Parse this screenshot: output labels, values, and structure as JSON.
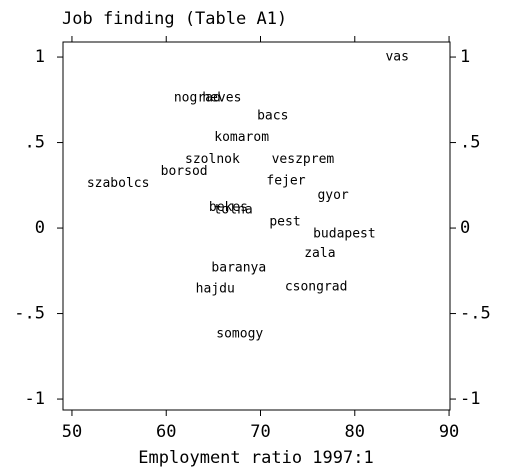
{
  "chart_data": {
    "type": "scatter",
    "title": "Job finding (Table A1)",
    "x_label": "Employment ratio 1997:1",
    "labels": [
      "vas",
      "nograd",
      "heves",
      "bacs",
      "komarom",
      "szolnok",
      "veszprem",
      "borsod",
      "szabolcs",
      "fejer",
      "gyor",
      "bekes",
      "tolna",
      "pest",
      "budapest",
      "zala",
      "baranya",
      "hajdu",
      "csongrad",
      "somogy"
    ],
    "x": [
      84.5,
      63.3,
      65.9,
      71.3,
      68.0,
      64.9,
      74.5,
      61.9,
      54.9,
      72.7,
      77.7,
      66.6,
      67.1,
      72.6,
      78.9,
      76.3,
      67.7,
      65.2,
      75.9,
      67.8
    ],
    "values": [
      1.0,
      0.76,
      0.76,
      0.655,
      0.53,
      0.4,
      0.4,
      0.33,
      0.26,
      0.275,
      0.19,
      0.12,
      0.105,
      0.035,
      -0.035,
      -0.15,
      -0.235,
      -0.355,
      -0.345,
      -0.62
    ],
    "color": "#000000",
    "xlim": [
      49.05,
      90.1
    ],
    "xticks": [
      50,
      60,
      70,
      80,
      90
    ],
    "ylim": [
      -1.064,
      1.088
    ],
    "yticks": [
      1,
      {
        "value": 0.5,
        "label": ".5"
      },
      0,
      {
        "value": -0.5,
        "label": "-.5"
      },
      -1
    ]
  }
}
